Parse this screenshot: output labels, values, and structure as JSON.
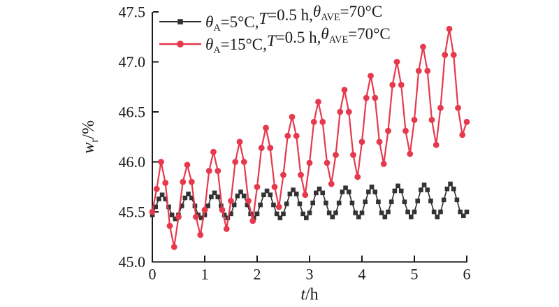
{
  "figure": {
    "background": "#ffffff",
    "axis_color": "#1a1a1a",
    "tick_direction": "in",
    "spines": [
      "left",
      "bottom"
    ]
  },
  "chart_data": {
    "type": "line",
    "title": "",
    "xlabel": "t/h",
    "ylabel": "wr/%",
    "xlabel_segments": [
      {
        "t": "t",
        "italic": true
      },
      {
        "t": "/h"
      }
    ],
    "ylabel_segments": [
      {
        "t": "w",
        "italic": true
      },
      {
        "t": "r",
        "sub": true
      },
      {
        "t": "/%"
      }
    ],
    "xlim": [
      0,
      6
    ],
    "ylim": [
      45.0,
      47.5
    ],
    "xticks": [
      "0",
      "1",
      "2",
      "3",
      "4",
      "5",
      "6"
    ],
    "yticks": [
      "45.0",
      "45.5",
      "46.0",
      "46.5",
      "47.0",
      "47.5"
    ],
    "grid": false,
    "legend_position": "top-left",
    "legend_frame": false,
    "series": [
      {
        "id": "thetaA-5C",
        "label": "θA=5°C,T=0.5 h,θAVE=70°C",
        "label_segments": [
          {
            "t": "θ",
            "italic": true
          },
          {
            "t": "A",
            "sub": true
          },
          {
            "t": "=5°C,"
          },
          {
            "t": "T",
            "italic": true
          },
          {
            "t": "=0.5 h,"
          },
          {
            "t": "θ",
            "italic": true
          },
          {
            "t": "AVE",
            "sub": true
          },
          {
            "t": "=70°C"
          }
        ],
        "color": "#333333",
        "line_color": "#2b2b2b",
        "line_width": 1.6,
        "marker": "square",
        "marker_size": 6.6,
        "x_start": 0,
        "x_step": 0.0625,
        "y": [
          45.47,
          45.55,
          45.63,
          45.67,
          45.63,
          45.55,
          45.47,
          45.43,
          45.47,
          45.56,
          45.64,
          45.68,
          45.64,
          45.56,
          45.47,
          45.44,
          45.47,
          45.56,
          45.65,
          45.69,
          45.65,
          45.56,
          45.47,
          45.44,
          45.48,
          45.57,
          45.66,
          45.7,
          45.66,
          45.57,
          45.48,
          45.44,
          45.48,
          45.57,
          45.67,
          45.71,
          45.67,
          45.57,
          45.48,
          45.44,
          45.48,
          45.58,
          45.68,
          45.72,
          45.68,
          45.58,
          45.48,
          45.44,
          45.49,
          45.59,
          45.69,
          45.73,
          45.69,
          45.59,
          45.49,
          45.45,
          45.49,
          45.59,
          45.7,
          45.74,
          45.7,
          45.59,
          45.49,
          45.45,
          45.49,
          45.6,
          45.7,
          45.75,
          45.7,
          45.6,
          45.49,
          45.45,
          45.5,
          45.6,
          45.71,
          45.76,
          45.71,
          45.6,
          45.5,
          45.45,
          45.5,
          45.61,
          45.72,
          45.77,
          45.72,
          45.61,
          45.5,
          45.45,
          45.5,
          45.62,
          45.73,
          45.78,
          45.73,
          45.62,
          45.5,
          45.46,
          45.5
        ]
      },
      {
        "id": "thetaA-15C",
        "label": "θA=15°C,T=0.5 h,θAVE=70°C",
        "label_segments": [
          {
            "t": "θ",
            "italic": true
          },
          {
            "t": "A",
            "sub": true
          },
          {
            "t": "=15°C,"
          },
          {
            "t": "T",
            "italic": true
          },
          {
            "t": "=0.5 h,"
          },
          {
            "t": "θ",
            "italic": true
          },
          {
            "t": "AVE",
            "sub": true
          },
          {
            "t": "=70°C"
          }
        ],
        "color": "#e7394d",
        "line_color": "#e7394d",
        "line_width": 2.2,
        "marker": "circle",
        "marker_size": 8.8,
        "x_start": 0,
        "x_step": 0.0833333,
        "y": [
          45.5,
          45.73,
          46.0,
          45.79,
          45.36,
          45.15,
          45.45,
          45.8,
          45.97,
          45.8,
          45.45,
          45.27,
          45.52,
          45.91,
          46.1,
          45.91,
          45.52,
          45.33,
          45.61,
          46.0,
          46.2,
          46.0,
          45.61,
          45.41,
          45.75,
          46.14,
          46.34,
          46.14,
          45.75,
          45.55,
          45.87,
          46.26,
          46.45,
          46.26,
          45.87,
          45.67,
          45.99,
          46.4,
          46.6,
          46.4,
          45.99,
          45.78,
          46.07,
          46.5,
          46.72,
          46.5,
          46.07,
          45.85,
          46.2,
          46.64,
          46.86,
          46.64,
          46.2,
          45.98,
          46.31,
          46.77,
          47.0,
          46.77,
          46.31,
          46.08,
          46.42,
          46.91,
          47.15,
          46.91,
          46.42,
          46.17,
          46.54,
          47.07,
          47.33,
          47.07,
          46.54,
          46.27,
          46.4
        ]
      }
    ]
  }
}
